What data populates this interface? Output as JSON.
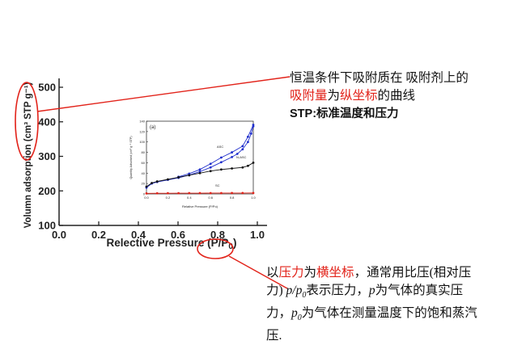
{
  "main_axes": {
    "xlabel": "Relective Pressure (P/P₀)",
    "xlabel_prefix": "Relective Pressure (P/P",
    "xlabel_sub": "0",
    "xlabel_suffix": ")",
    "ylabel": "Volumn adsorption (cm³ STP g⁻¹)",
    "x_ticks": [
      "0.0",
      "0.2",
      "0.4",
      "0.6",
      "0.8",
      "1.0"
    ],
    "y_ticks": [
      "100",
      "200",
      "300",
      "400",
      "500"
    ],
    "xlim": [
      0.0,
      1.0
    ],
    "ylim": [
      100,
      500
    ]
  },
  "chart_data": {
    "type": "line",
    "panel_label": "(a)",
    "xlabel": "Relative Pressure (P/Po)",
    "ylabel": "Quantity Adsorbed (cm³ g⁻¹ STP)",
    "x_ticks": [
      "0.0",
      "0.2",
      "0.4",
      "0.6",
      "0.8",
      "1.0"
    ],
    "y_ticks": [
      "0",
      "20",
      "40",
      "60",
      "80",
      "100",
      "120",
      "140"
    ],
    "xlim": [
      0,
      1
    ],
    "ylim": [
      0,
      140
    ],
    "series": [
      {
        "name": "ASC",
        "color": "#1f2ecc",
        "x": [
          0.0,
          0.05,
          0.1,
          0.2,
          0.3,
          0.4,
          0.5,
          0.6,
          0.7,
          0.8,
          0.85,
          0.9,
          0.95,
          0.98,
          1.0
        ],
        "y": [
          12,
          20,
          23,
          27,
          31,
          36,
          43,
          51,
          61,
          71,
          77,
          86,
          100,
          116,
          130
        ]
      },
      {
        "name": "ASC desorption",
        "color": "#1f2ecc",
        "x": [
          0.3,
          0.4,
          0.5,
          0.6,
          0.7,
          0.8,
          0.9,
          0.95,
          1.0
        ],
        "y": [
          33,
          39,
          47,
          58,
          70,
          80,
          92,
          110,
          133
        ]
      },
      {
        "name": "N-ASC",
        "color": "#111111",
        "x": [
          0.0,
          0.05,
          0.1,
          0.2,
          0.3,
          0.4,
          0.5,
          0.6,
          0.7,
          0.8,
          0.9,
          0.95,
          1.0
        ],
        "y": [
          14,
          21,
          24,
          28,
          32,
          36,
          40,
          44,
          47,
          49,
          51,
          54,
          60
        ]
      },
      {
        "name": "SC",
        "color": "#e2231a",
        "x": [
          0.0,
          0.1,
          0.2,
          0.3,
          0.4,
          0.5,
          0.6,
          0.7,
          0.8,
          0.9,
          1.0
        ],
        "y": [
          1,
          1.2,
          1.3,
          1.4,
          1.5,
          1.5,
          1.6,
          1.6,
          1.7,
          1.7,
          1.8
        ]
      }
    ]
  },
  "annotation_top": {
    "line1": "恒温条件下吸附质在 吸附剂上的",
    "line2_red1": "吸附量",
    "line2_mid": "为",
    "line2_red2": "纵坐标",
    "line2_end": "的曲线",
    "line3": "STP:标准温度和压力"
  },
  "annotation_bottom": {
    "p1": "以",
    "red1": "压力",
    "p2": "为",
    "red2": "横坐标",
    "p3": "，通常用比压(相对压",
    "line2_a": "力)",
    "line2_p": "p/p",
    "line2_sub": "0",
    "line2_b": "表示压力，",
    "line2_p2": "p",
    "line2_c": "为气体的真实压",
    "line3_a": "力，",
    "line3_p": "p",
    "line3_sub": "0",
    "line3_b": "为气体在测量温度下的饱和蒸汽",
    "line4": "压."
  },
  "colors": {
    "highlight": "#e2231a",
    "asc": "#1f2ecc",
    "nasc": "#111111",
    "sc": "#e2231a"
  }
}
